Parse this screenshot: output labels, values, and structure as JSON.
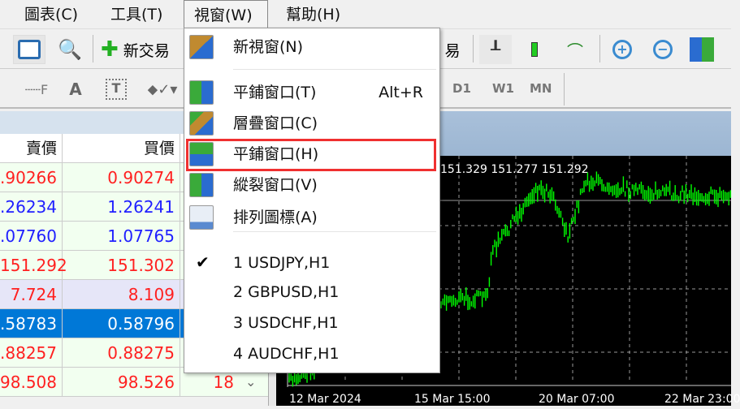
{
  "menubar": {
    "items": [
      {
        "label": "圖表(C)"
      },
      {
        "label": "工具(T)"
      },
      {
        "label": "視窗(W)"
      },
      {
        "label": "幫助(H)"
      }
    ]
  },
  "toolbar": {
    "new_order": "新交易",
    "one_click": "易",
    "timeframes": [
      "D1",
      "W1",
      "MN"
    ],
    "text_tool": "A"
  },
  "table": {
    "headers": [
      "賣價",
      "買價"
    ],
    "rows": [
      {
        "bid": ".90266",
        "ask": "0.90274",
        "color": "red"
      },
      {
        "bid": ".26234",
        "ask": "1.26241",
        "color": "blue"
      },
      {
        "bid": ".07760",
        "ask": "1.07765",
        "color": "blue"
      },
      {
        "bid": "151.292",
        "ask": "151.302",
        "color": "red"
      },
      {
        "bid": "7.724",
        "ask": "8.109",
        "color": "red"
      },
      {
        "bid": ".58783",
        "ask": "0.58796",
        "color": "white",
        "selected": true
      },
      {
        "bid": ".88257",
        "ask": "0.88275",
        "color": "red"
      },
      {
        "bid": "98.508",
        "ask": "98.526",
        "spread": "18",
        "color": "red"
      }
    ]
  },
  "menu": {
    "items": [
      {
        "label": "新視窗(N)",
        "icon": "new-window-icon"
      },
      {
        "label": "平鋪窗口(T)",
        "shortcut": "Alt+R",
        "icon": "tile-icon"
      },
      {
        "label": "層疊窗口(C)",
        "icon": "cascade-icon"
      },
      {
        "label": "平鋪窗口(H)",
        "icon": "tile-horizontal-icon",
        "highlighted": true
      },
      {
        "label": "縱裂窗口(V)",
        "icon": "tile-vertical-icon"
      },
      {
        "label": "排列圖標(A)",
        "icon": "arrange-icons-icon"
      },
      {
        "label": "1 USDJPY,H1",
        "checked": true
      },
      {
        "label": "2 GBPUSD,H1"
      },
      {
        "label": "3 USDCHF,H1"
      },
      {
        "label": "4 AUDCHF,H1"
      }
    ]
  },
  "chart": {
    "info": "151.329 151.277 151.292",
    "dates": [
      "12 Mar 2024",
      "15 Mar 15:00",
      "20 Mar 07:00",
      "22 Mar 23:00"
    ],
    "bar_color": "#00ff00"
  }
}
